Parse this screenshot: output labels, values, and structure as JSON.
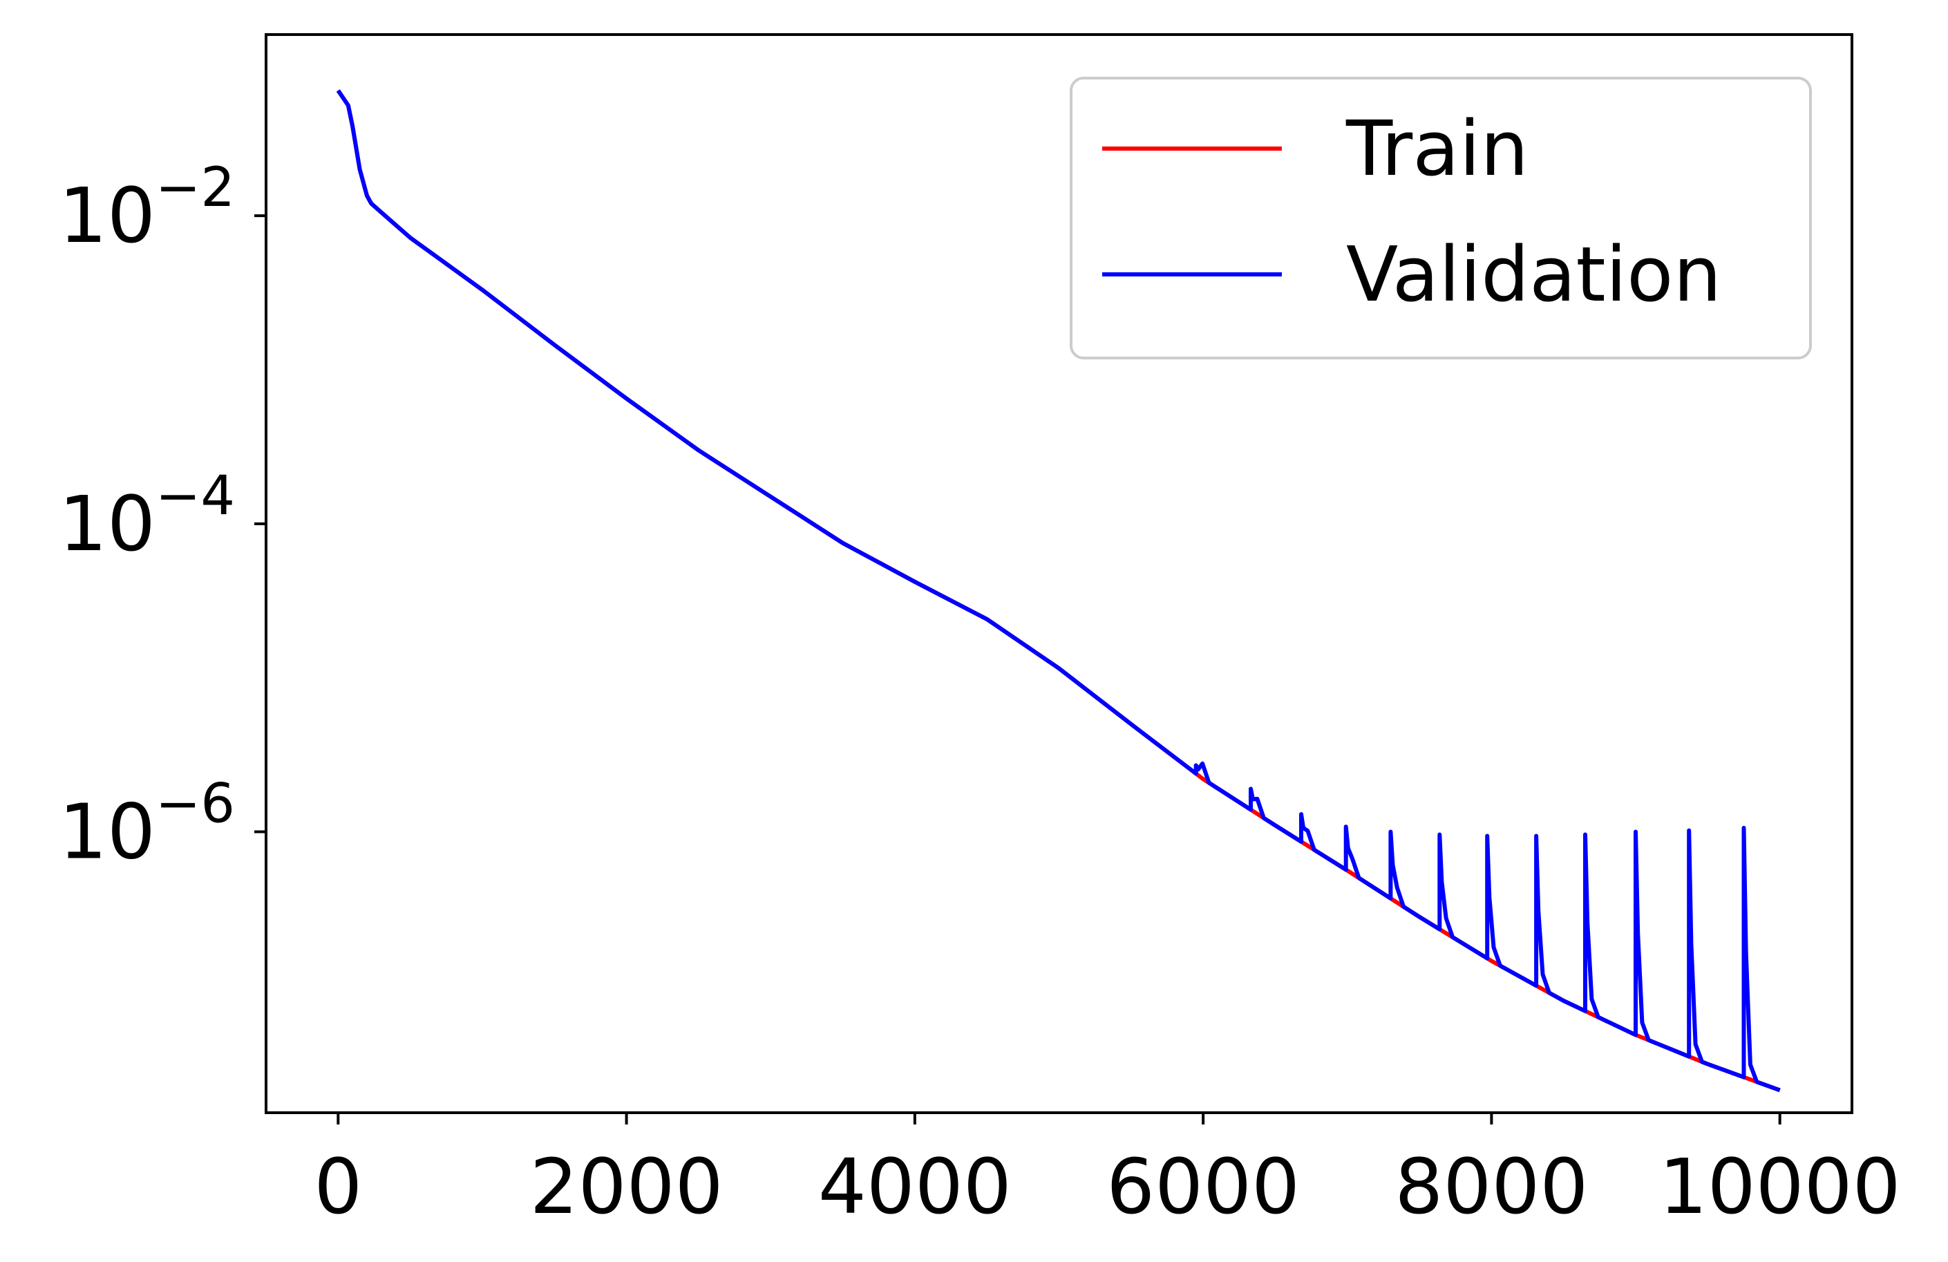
{
  "chart_data": {
    "type": "line",
    "title": "",
    "xlabel": "",
    "ylabel": "",
    "x_range": [
      -500,
      10500
    ],
    "y_scale": "log",
    "y_range": [
      1.5e-08,
      0.15
    ],
    "x_ticks": [
      {
        "value": 0,
        "label": "0"
      },
      {
        "value": 2000,
        "label": "2000"
      },
      {
        "value": 4000,
        "label": "4000"
      },
      {
        "value": 6000,
        "label": "6000"
      },
      {
        "value": 8000,
        "label": "8000"
      },
      {
        "value": 10000,
        "label": "10000"
      }
    ],
    "y_ticks": [
      {
        "value": 0.01,
        "base": "10",
        "exp": "−2"
      },
      {
        "value": 0.0001,
        "base": "10",
        "exp": "−4"
      },
      {
        "value": 1e-06,
        "base": "10",
        "exp": "−6"
      }
    ],
    "grid": false,
    "legend": {
      "position": "top-right"
    },
    "series": [
      {
        "name": "Train",
        "color": "#ff0000",
        "x": [
          0,
          70,
          100,
          150,
          200,
          230,
          300,
          500,
          1000,
          1500,
          2000,
          2500,
          3000,
          3500,
          4000,
          4500,
          5000,
          5500,
          6000,
          6500,
          7000,
          7500,
          8000,
          8500,
          9000,
          9500,
          10000
        ],
        "y": [
          0.065,
          0.052,
          0.038,
          0.02,
          0.0135,
          0.012,
          0.0105,
          0.0072,
          0.0033,
          0.00145,
          0.00065,
          0.0003,
          0.00015,
          7.5e-05,
          4.2e-05,
          2.4e-05,
          1.15e-05,
          5e-06,
          2.2e-06,
          1.1e-06,
          5.6e-07,
          2.8e-07,
          1.45e-07,
          8e-08,
          4.8e-08,
          3.1e-08,
          2.1e-08
        ]
      },
      {
        "name": "Validation",
        "color": "#0000ff",
        "x": [
          0,
          70,
          100,
          150,
          200,
          230,
          300,
          500,
          1000,
          1500,
          2000,
          2500,
          3000,
          3500,
          4000,
          4500,
          5000,
          5500,
          6000,
          6500,
          7000,
          7500,
          8000,
          8500,
          9000,
          9500,
          10000
        ],
        "y": [
          0.065,
          0.052,
          0.038,
          0.02,
          0.0135,
          0.012,
          0.0105,
          0.0072,
          0.0033,
          0.00145,
          0.00065,
          0.0003,
          0.00015,
          7.5e-05,
          4.2e-05,
          2.4e-05,
          1.15e-05,
          5e-06,
          2.2e-06,
          1.1e-06,
          5.6e-07,
          2.8e-07,
          1.45e-07,
          8e-08,
          4.8e-08,
          3.1e-08,
          2.1e-08
        ],
        "spikes": [
          {
            "x": 5950,
            "peak": 2.7e-06
          },
          {
            "x": 6330,
            "peak": 1.9e-06
          },
          {
            "x": 6680,
            "peak": 1.3e-06
          },
          {
            "x": 6990,
            "peak": 1.08e-06
          },
          {
            "x": 7300,
            "peak": 1e-06
          },
          {
            "x": 7640,
            "peak": 9.6e-07
          },
          {
            "x": 7970,
            "peak": 9.4e-07
          },
          {
            "x": 8310,
            "peak": 9.4e-07
          },
          {
            "x": 8650,
            "peak": 9.6e-07
          },
          {
            "x": 9000,
            "peak": 1e-06
          },
          {
            "x": 9370,
            "peak": 1.02e-06
          },
          {
            "x": 9750,
            "peak": 1.06e-06
          }
        ]
      }
    ]
  }
}
